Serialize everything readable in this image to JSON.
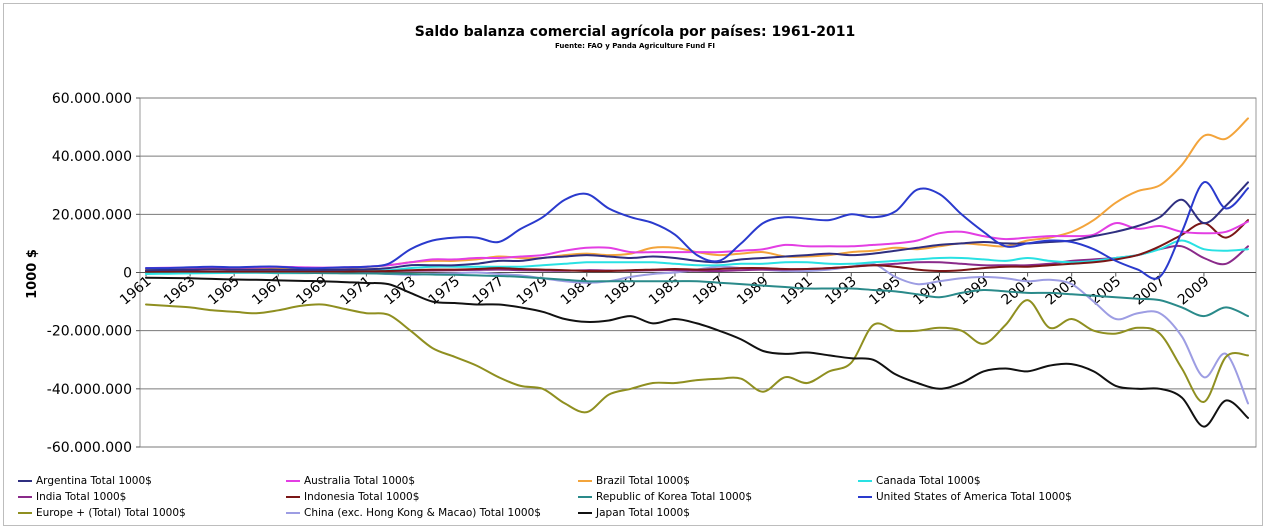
{
  "chart_data": {
    "type": "line",
    "title": "Saldo balanza comercial agrícola por países: 1961-2011",
    "subtitle": "Fuente: FAO y Panda Agriculture Fund FI",
    "xlabel": "",
    "ylabel": "1000 $",
    "ylim": [
      -60000000,
      60000000
    ],
    "yticks": [
      60000000,
      40000000,
      20000000,
      0,
      -20000000,
      -40000000,
      -60000000
    ],
    "ytick_labels": [
      "60.000.000",
      "40.000.000",
      "20.000.000",
      "0",
      "-20.000.000",
      "-40.000.000",
      "-60.000.000"
    ],
    "x": [
      1961,
      1962,
      1963,
      1964,
      1965,
      1966,
      1967,
      1968,
      1969,
      1970,
      1971,
      1972,
      1973,
      1974,
      1975,
      1976,
      1977,
      1978,
      1979,
      1980,
      1981,
      1982,
      1983,
      1984,
      1985,
      1986,
      1987,
      1988,
      1989,
      1990,
      1991,
      1992,
      1993,
      1994,
      1995,
      1996,
      1997,
      1998,
      1999,
      2000,
      2001,
      2002,
      2003,
      2004,
      2005,
      2006,
      2007,
      2008,
      2009,
      2010,
      2011
    ],
    "xtick_labels": [
      "1961",
      "1963",
      "1965",
      "1967",
      "1969",
      "1971",
      "1973",
      "1975",
      "1977",
      "1979",
      "1981",
      "1983",
      "1985",
      "1987",
      "1989",
      "1991",
      "1993",
      "1995",
      "1997",
      "1999",
      "2001",
      "2003",
      "2005",
      "2007",
      "2009"
    ],
    "grid": true,
    "legend_position": "bottom",
    "series": [
      {
        "name": "Argentina Total 1000$",
        "color": "#2f2f80",
        "values": [
          800000,
          900000,
          1000000,
          1100000,
          1000000,
          1000000,
          1000000,
          900000,
          900000,
          1000000,
          1100000,
          1500000,
          2500000,
          2500000,
          2500000,
          3000000,
          4000000,
          4000000,
          5000000,
          5500000,
          6000000,
          5500000,
          5000000,
          5500000,
          5000000,
          4000000,
          3500000,
          4500000,
          5000000,
          5500000,
          6000000,
          6500000,
          6000000,
          6500000,
          7500000,
          8500000,
          9500000,
          10000000,
          10500000,
          10000000,
          10000000,
          10500000,
          11000000,
          12500000,
          14000000,
          16000000,
          19000000,
          25000000,
          17000000,
          23000000,
          31000000
        ]
      },
      {
        "name": "Australia Total 1000$",
        "color": "#e33ee3",
        "values": [
          1500000,
          1600000,
          1700000,
          1800000,
          1700000,
          1800000,
          2000000,
          1800000,
          1700000,
          1800000,
          2000000,
          2500000,
          3500000,
          4500000,
          4500000,
          5000000,
          5000000,
          5500000,
          6000000,
          7500000,
          8500000,
          8500000,
          7000000,
          7000000,
          7000000,
          7000000,
          7000000,
          7500000,
          8000000,
          9500000,
          9000000,
          9000000,
          9000000,
          9500000,
          10000000,
          11000000,
          13500000,
          14000000,
          12500000,
          11500000,
          12000000,
          12500000,
          12500000,
          13000000,
          17000000,
          15000000,
          16000000,
          14000000,
          13500000,
          14000000,
          17500000
        ]
      },
      {
        "name": "Brazil Total 1000$",
        "color": "#f3a43b",
        "values": [
          1000000,
          1100000,
          1200000,
          1300000,
          1400000,
          1500000,
          1500000,
          1400000,
          1500000,
          1700000,
          1900000,
          2500000,
          3500000,
          4000000,
          4000000,
          4500000,
          5500000,
          5000000,
          5000000,
          6000000,
          6500000,
          6000000,
          6500000,
          8500000,
          8500000,
          7000000,
          6000000,
          6500000,
          7000000,
          5500000,
          5500000,
          6000000,
          7000000,
          7500000,
          8500000,
          8000000,
          9000000,
          10000000,
          9500000,
          9000000,
          11000000,
          12000000,
          14000000,
          18000000,
          24000000,
          28000000,
          30000000,
          37000000,
          47000000,
          46000000,
          53000000
        ]
      },
      {
        "name": "Canada Total 1000$",
        "color": "#29e1e3",
        "values": [
          -500000,
          -400000,
          -300000,
          -200000,
          -100000,
          0,
          0,
          100000,
          200000,
          300000,
          500000,
          800000,
          1500000,
          2000000,
          2000000,
          2000000,
          2000000,
          2000000,
          2500000,
          3000000,
          3500000,
          3500000,
          3500000,
          3500000,
          3000000,
          2500000,
          2500000,
          3000000,
          3000000,
          3500000,
          3500000,
          3000000,
          3000000,
          3500000,
          4000000,
          4500000,
          5000000,
          5000000,
          4500000,
          4000000,
          5000000,
          4000000,
          3500000,
          4000000,
          5000000,
          6000000,
          8000000,
          11000000,
          8000000,
          7500000,
          8000000
        ]
      },
      {
        "name": "India Total 1000$",
        "color": "#8a2a8a",
        "values": [
          500000,
          500000,
          400000,
          300000,
          200000,
          200000,
          100000,
          100000,
          200000,
          300000,
          400000,
          500000,
          600000,
          700000,
          800000,
          900000,
          1000000,
          800000,
          700000,
          600000,
          800000,
          700000,
          600000,
          800000,
          800000,
          600000,
          500000,
          800000,
          1000000,
          1000000,
          1200000,
          1500000,
          2000000,
          2500000,
          3000000,
          3500000,
          3500000,
          3000000,
          2500000,
          2500000,
          2500000,
          3000000,
          4000000,
          4500000,
          5000000,
          6000000,
          8000000,
          9000000,
          5000000,
          3000000,
          9000000
        ]
      },
      {
        "name": "Indonesia Total 1000$",
        "color": "#7a1616",
        "values": [
          300000,
          300000,
          300000,
          300000,
          300000,
          300000,
          300000,
          300000,
          300000,
          300000,
          400000,
          500000,
          800000,
          1000000,
          1000000,
          1200000,
          1500000,
          1200000,
          1000000,
          800000,
          500000,
          500000,
          800000,
          1000000,
          1200000,
          1000000,
          1200000,
          1500000,
          1500000,
          1200000,
          1200000,
          1500000,
          2000000,
          2500000,
          2000000,
          1000000,
          500000,
          800000,
          1500000,
          2000000,
          2000000,
          2500000,
          3000000,
          3500000,
          4500000,
          6000000,
          9000000,
          13000000,
          17000000,
          12000000,
          18000000
        ]
      },
      {
        "name": "Republic of Korea Total 1000$",
        "color": "#2a8a8a",
        "values": [
          -100000,
          -100000,
          -100000,
          -100000,
          -100000,
          -100000,
          -200000,
          -200000,
          -200000,
          -300000,
          -300000,
          -400000,
          -500000,
          -700000,
          -800000,
          -1000000,
          -1200000,
          -1500000,
          -2000000,
          -2500000,
          -3000000,
          -3000000,
          -3000000,
          -3000000,
          -3000000,
          -3000000,
          -3500000,
          -4000000,
          -4500000,
          -5000000,
          -5500000,
          -5500000,
          -5500000,
          -6000000,
          -6500000,
          -7500000,
          -8500000,
          -7000000,
          -6000000,
          -6500000,
          -7000000,
          -7000000,
          -7500000,
          -8000000,
          -8500000,
          -9000000,
          -9500000,
          -12000000,
          -15000000,
          -12000000,
          -15000000
        ]
      },
      {
        "name": "United States of America Total 1000$",
        "color": "#2a3acd",
        "values": [
          1500000,
          1500000,
          1800000,
          2000000,
          1800000,
          2000000,
          2000000,
          1500000,
          1500000,
          1800000,
          2000000,
          3000000,
          8000000,
          11000000,
          12000000,
          12000000,
          10500000,
          15000000,
          19000000,
          25000000,
          27000000,
          22000000,
          19000000,
          17000000,
          13000000,
          6000000,
          4000000,
          10000000,
          17000000,
          19000000,
          18500000,
          18000000,
          20000000,
          19000000,
          21000000,
          28500000,
          27000000,
          20000000,
          14000000,
          9000000,
          10000000,
          11000000,
          10500000,
          8000000,
          4000000,
          1000000,
          -1500000,
          14000000,
          31000000,
          22000000,
          29000000
        ]
      },
      {
        "name": "Europe + (Total) Total 1000$",
        "color": "#8f8f20",
        "values": [
          -11000000,
          -11500000,
          -12000000,
          -13000000,
          -13500000,
          -14000000,
          -13000000,
          -11500000,
          -11000000,
          -12500000,
          -14000000,
          -14500000,
          -20000000,
          -26000000,
          -29000000,
          -32000000,
          -36000000,
          -39000000,
          -40000000,
          -45000000,
          -48000000,
          -42000000,
          -40000000,
          -38000000,
          -38000000,
          -37000000,
          -36500000,
          -36500000,
          -41000000,
          -36000000,
          -38000000,
          -34000000,
          -31000000,
          -18000000,
          -20000000,
          -20000000,
          -19000000,
          -20000000,
          -24500000,
          -18000000,
          -9500000,
          -19000000,
          -16000000,
          -20000000,
          -21000000,
          -19000000,
          -21000000,
          -33000000,
          -44500000,
          -29000000,
          -28500000
        ]
      },
      {
        "name": "China (exc. Hong Kong & Macao) Total 1000$",
        "color": "#9d9de3",
        "values": [
          200000,
          100000,
          0,
          -100000,
          0,
          200000,
          300000,
          200000,
          100000,
          0,
          -200000,
          -500000,
          -800000,
          -500000,
          -300000,
          0,
          -500000,
          -1000000,
          -2000000,
          -3000000,
          -3500000,
          -3000000,
          -1500000,
          -500000,
          0,
          1000000,
          2000000,
          1500000,
          1000000,
          500000,
          500000,
          1000000,
          2000000,
          3000000,
          -1500000,
          -4000000,
          -3000000,
          -2000000,
          -1500000,
          -2000000,
          -3000000,
          -2500000,
          -4000000,
          -10000000,
          -16000000,
          -14000000,
          -14000000,
          -22000000,
          -36000000,
          -28000000,
          -45000000
        ]
      },
      {
        "name": "Japan Total 1000$",
        "color": "#111111",
        "values": [
          -1800000,
          -1900000,
          -2000000,
          -2200000,
          -2400000,
          -2500000,
          -2700000,
          -2900000,
          -3000000,
          -3300000,
          -3600000,
          -4000000,
          -7000000,
          -10000000,
          -10500000,
          -11000000,
          -11000000,
          -12000000,
          -13500000,
          -16000000,
          -17000000,
          -16500000,
          -15000000,
          -17500000,
          -16000000,
          -17500000,
          -20000000,
          -23000000,
          -27000000,
          -28000000,
          -27500000,
          -28500000,
          -29500000,
          -30000000,
          -35000000,
          -38000000,
          -40000000,
          -38000000,
          -34000000,
          -33000000,
          -34000000,
          -32000000,
          -31500000,
          -34000000,
          -39000000,
          -40000000,
          -40000000,
          -43000000,
          -53000000,
          -44000000,
          -50000000
        ]
      }
    ]
  }
}
